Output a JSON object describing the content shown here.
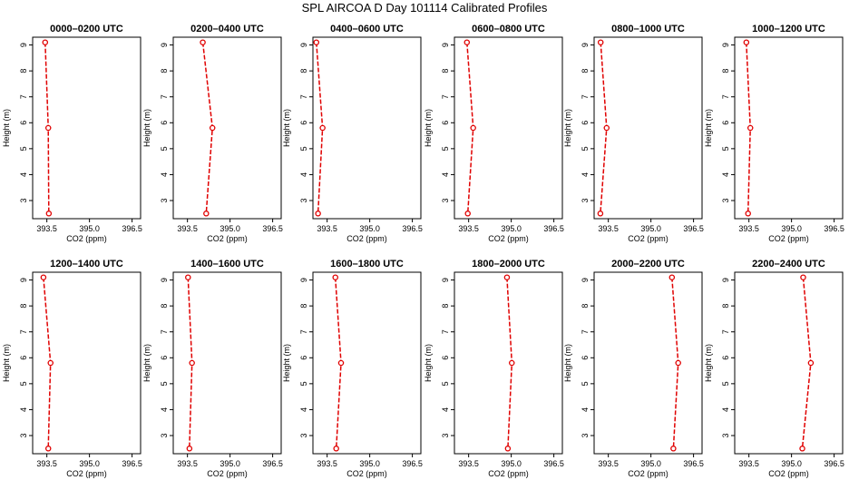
{
  "title": "SPL AIRCOA D  Day 101114  Calibrated Profiles",
  "style": {
    "line_color": "#e00000",
    "axis_color": "#000000"
  },
  "chart_data": [
    {
      "type": "line",
      "title": "0000–0200 UTC",
      "xlabel": "CO2 (ppm)",
      "ylabel": "Height (m)",
      "xlim": [
        393.0,
        396.8
      ],
      "ylim": [
        2.3,
        9.3
      ],
      "xticks": [
        "393.5",
        "395.0",
        "396.5"
      ],
      "yticks": [
        "3",
        "4",
        "5",
        "6",
        "7",
        "8",
        "9"
      ],
      "points": [
        {
          "x": 393.44,
          "y": 9.1
        },
        {
          "x": 393.55,
          "y": 5.8
        },
        {
          "x": 393.57,
          "y": 2.5
        }
      ]
    },
    {
      "type": "line",
      "title": "0200–0400 UTC",
      "xlabel": "CO2 (ppm)",
      "ylabel": "Height (m)",
      "xlim": [
        393.0,
        396.8
      ],
      "ylim": [
        2.3,
        9.3
      ],
      "xticks": [
        "393.5",
        "395.0",
        "396.5"
      ],
      "yticks": [
        "3",
        "4",
        "5",
        "6",
        "7",
        "8",
        "9"
      ],
      "points": [
        {
          "x": 394.04,
          "y": 9.1
        },
        {
          "x": 394.38,
          "y": 5.8
        },
        {
          "x": 394.16,
          "y": 2.5
        }
      ]
    },
    {
      "type": "line",
      "title": "0400–0600 UTC",
      "xlabel": "CO2 (ppm)",
      "ylabel": "Height (m)",
      "xlim": [
        393.0,
        396.8
      ],
      "ylim": [
        2.3,
        9.3
      ],
      "xticks": [
        "393.5",
        "395.0",
        "396.5"
      ],
      "yticks": [
        "3",
        "4",
        "5",
        "6",
        "7",
        "8",
        "9"
      ],
      "points": [
        {
          "x": 393.12,
          "y": 9.1
        },
        {
          "x": 393.34,
          "y": 5.8
        },
        {
          "x": 393.18,
          "y": 2.5
        }
      ]
    },
    {
      "type": "line",
      "title": "0600–0800 UTC",
      "xlabel": "CO2 (ppm)",
      "ylabel": "Height (m)",
      "xlim": [
        393.0,
        396.8
      ],
      "ylim": [
        2.3,
        9.3
      ],
      "xticks": [
        "393.5",
        "395.0",
        "396.5"
      ],
      "yticks": [
        "3",
        "4",
        "5",
        "6",
        "7",
        "8",
        "9"
      ],
      "points": [
        {
          "x": 393.44,
          "y": 9.1
        },
        {
          "x": 393.66,
          "y": 5.8
        },
        {
          "x": 393.47,
          "y": 2.5
        }
      ]
    },
    {
      "type": "line",
      "title": "0800–1000 UTC",
      "xlabel": "CO2 (ppm)",
      "ylabel": "Height (m)",
      "xlim": [
        393.0,
        396.8
      ],
      "ylim": [
        2.3,
        9.3
      ],
      "xticks": [
        "393.5",
        "395.0",
        "396.5"
      ],
      "yticks": [
        "3",
        "4",
        "5",
        "6",
        "7",
        "8",
        "9"
      ],
      "points": [
        {
          "x": 393.23,
          "y": 9.1
        },
        {
          "x": 393.44,
          "y": 5.8
        },
        {
          "x": 393.22,
          "y": 2.5
        }
      ]
    },
    {
      "type": "line",
      "title": "1000–1200 UTC",
      "xlabel": "CO2 (ppm)",
      "ylabel": "Height (m)",
      "xlim": [
        393.0,
        396.8
      ],
      "ylim": [
        2.3,
        9.3
      ],
      "xticks": [
        "393.5",
        "395.0",
        "396.5"
      ],
      "yticks": [
        "3",
        "4",
        "5",
        "6",
        "7",
        "8",
        "9"
      ],
      "points": [
        {
          "x": 393.41,
          "y": 9.1
        },
        {
          "x": 393.55,
          "y": 5.8
        },
        {
          "x": 393.47,
          "y": 2.5
        }
      ]
    },
    {
      "type": "line",
      "title": "1200–1400 UTC",
      "xlabel": "CO2 (ppm)",
      "ylabel": "Height (m)",
      "xlim": [
        393.0,
        396.8
      ],
      "ylim": [
        2.3,
        9.3
      ],
      "xticks": [
        "393.5",
        "395.0",
        "396.5"
      ],
      "yticks": [
        "3",
        "4",
        "5",
        "6",
        "7",
        "8",
        "9"
      ],
      "points": [
        {
          "x": 393.38,
          "y": 9.1
        },
        {
          "x": 393.63,
          "y": 5.8
        },
        {
          "x": 393.55,
          "y": 2.5
        }
      ]
    },
    {
      "type": "line",
      "title": "1400–1600 UTC",
      "xlabel": "CO2 (ppm)",
      "ylabel": "Height (m)",
      "xlim": [
        393.0,
        396.8
      ],
      "ylim": [
        2.3,
        9.3
      ],
      "xticks": [
        "393.5",
        "395.0",
        "396.5"
      ],
      "yticks": [
        "3",
        "4",
        "5",
        "6",
        "7",
        "8",
        "9"
      ],
      "points": [
        {
          "x": 393.52,
          "y": 9.1
        },
        {
          "x": 393.66,
          "y": 5.8
        },
        {
          "x": 393.57,
          "y": 2.5
        }
      ]
    },
    {
      "type": "line",
      "title": "1600–1800 UTC",
      "xlabel": "CO2 (ppm)",
      "ylabel": "Height (m)",
      "xlim": [
        393.0,
        396.8
      ],
      "ylim": [
        2.3,
        9.3
      ],
      "xticks": [
        "393.5",
        "395.0",
        "396.5"
      ],
      "yticks": [
        "3",
        "4",
        "5",
        "6",
        "7",
        "8",
        "9"
      ],
      "points": [
        {
          "x": 393.79,
          "y": 9.1
        },
        {
          "x": 393.99,
          "y": 5.8
        },
        {
          "x": 393.82,
          "y": 2.5
        }
      ]
    },
    {
      "type": "line",
      "title": "1800–2000 UTC",
      "xlabel": "CO2 (ppm)",
      "ylabel": "Height (m)",
      "xlim": [
        393.0,
        396.8
      ],
      "ylim": [
        2.3,
        9.3
      ],
      "xticks": [
        "393.5",
        "395.0",
        "396.5"
      ],
      "yticks": [
        "3",
        "4",
        "5",
        "6",
        "7",
        "8",
        "9"
      ],
      "points": [
        {
          "x": 394.85,
          "y": 9.1
        },
        {
          "x": 395.02,
          "y": 5.8
        },
        {
          "x": 394.88,
          "y": 2.5
        }
      ]
    },
    {
      "type": "line",
      "title": "2000–2200 UTC",
      "xlabel": "CO2 (ppm)",
      "ylabel": "Height (m)",
      "xlim": [
        393.0,
        396.8
      ],
      "ylim": [
        2.3,
        9.3
      ],
      "xticks": [
        "393.5",
        "395.0",
        "396.5"
      ],
      "yticks": [
        "3",
        "4",
        "5",
        "6",
        "7",
        "8",
        "9"
      ],
      "points": [
        {
          "x": 395.74,
          "y": 9.1
        },
        {
          "x": 395.96,
          "y": 5.8
        },
        {
          "x": 395.79,
          "y": 2.5
        }
      ]
    },
    {
      "type": "line",
      "title": "2200–2400 UTC",
      "xlabel": "CO2 (ppm)",
      "ylabel": "Height (m)",
      "xlim": [
        393.0,
        396.8
      ],
      "ylim": [
        2.3,
        9.3
      ],
      "xticks": [
        "393.5",
        "395.0",
        "396.5"
      ],
      "yticks": [
        "3",
        "4",
        "5",
        "6",
        "7",
        "8",
        "9"
      ],
      "points": [
        {
          "x": 395.41,
          "y": 9.1
        },
        {
          "x": 395.68,
          "y": 5.8
        },
        {
          "x": 395.38,
          "y": 2.5
        }
      ]
    }
  ]
}
